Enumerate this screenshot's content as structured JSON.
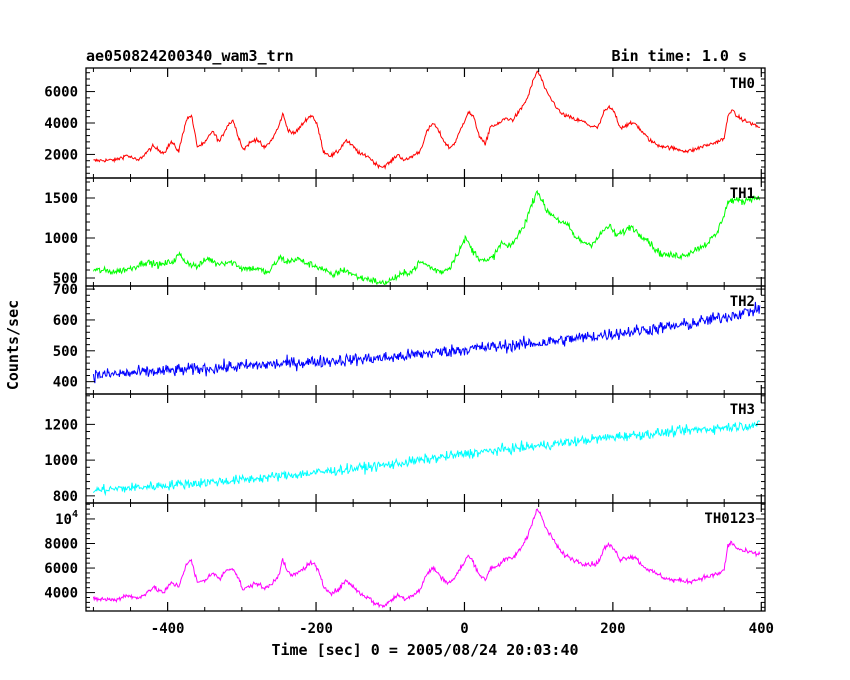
{
  "chart_data": {
    "type": "line",
    "title": "ae050824200340_wam3_trn",
    "subtitle": "Bin time: 1.0 s",
    "xlabel": "Time [sec] 0 = 2005/08/24 20:03:40",
    "ylabel": "Counts/sec",
    "xlim": [
      -510,
      405
    ],
    "x_ticks": [
      "-400",
      "-200",
      "0",
      "200",
      "400"
    ],
    "grid": false,
    "panels": [
      {
        "name": "TH0",
        "color": "#ff0000",
        "ylim": [
          500,
          7500
        ],
        "y_ticks": [
          "2000",
          "4000",
          "6000"
        ],
        "trend": [
          [
            -500,
            1600
          ],
          [
            -470,
            1650
          ],
          [
            -455,
            1950
          ],
          [
            -440,
            1600
          ],
          [
            -420,
            2500
          ],
          [
            -405,
            2100
          ],
          [
            -395,
            2800
          ],
          [
            -385,
            2200
          ],
          [
            -375,
            4200
          ],
          [
            -368,
            4500
          ],
          [
            -360,
            2500
          ],
          [
            -350,
            2700
          ],
          [
            -340,
            3500
          ],
          [
            -330,
            2800
          ],
          [
            -320,
            3800
          ],
          [
            -312,
            4200
          ],
          [
            -305,
            3200
          ],
          [
            -298,
            2300
          ],
          [
            -290,
            2700
          ],
          [
            -280,
            3000
          ],
          [
            -270,
            2400
          ],
          [
            -260,
            2900
          ],
          [
            -250,
            3800
          ],
          [
            -245,
            4600
          ],
          [
            -238,
            3600
          ],
          [
            -230,
            3300
          ],
          [
            -222,
            3700
          ],
          [
            -212,
            4300
          ],
          [
            -205,
            4500
          ],
          [
            -198,
            3800
          ],
          [
            -190,
            2200
          ],
          [
            -180,
            1900
          ],
          [
            -170,
            2200
          ],
          [
            -160,
            2900
          ],
          [
            -150,
            2500
          ],
          [
            -140,
            2000
          ],
          [
            -130,
            1900
          ],
          [
            -120,
            1400
          ],
          [
            -110,
            1200
          ],
          [
            -100,
            1500
          ],
          [
            -90,
            2000
          ],
          [
            -80,
            1600
          ],
          [
            -70,
            1900
          ],
          [
            -60,
            2200
          ],
          [
            -50,
            3500
          ],
          [
            -42,
            4000
          ],
          [
            -35,
            3500
          ],
          [
            -27,
            2800
          ],
          [
            -20,
            2400
          ],
          [
            -12,
            2800
          ],
          [
            -5,
            3600
          ],
          [
            5,
            4700
          ],
          [
            12,
            4400
          ],
          [
            20,
            3200
          ],
          [
            28,
            2600
          ],
          [
            35,
            3800
          ],
          [
            45,
            3900
          ],
          [
            55,
            4300
          ],
          [
            65,
            4200
          ],
          [
            75,
            4800
          ],
          [
            85,
            5600
          ],
          [
            92,
            6600
          ],
          [
            98,
            7300
          ],
          [
            103,
            6900
          ],
          [
            110,
            6000
          ],
          [
            120,
            5300
          ],
          [
            130,
            4600
          ],
          [
            140,
            4400
          ],
          [
            150,
            4200
          ],
          [
            160,
            4100
          ],
          [
            170,
            3800
          ],
          [
            180,
            3700
          ],
          [
            188,
            4700
          ],
          [
            195,
            5000
          ],
          [
            202,
            4700
          ],
          [
            210,
            3700
          ],
          [
            220,
            3900
          ],
          [
            230,
            4000
          ],
          [
            240,
            3400
          ],
          [
            250,
            2900
          ],
          [
            260,
            2600
          ],
          [
            270,
            2500
          ],
          [
            280,
            2400
          ],
          [
            290,
            2300
          ],
          [
            300,
            2200
          ],
          [
            310,
            2300
          ],
          [
            320,
            2500
          ],
          [
            335,
            2700
          ],
          [
            345,
            2900
          ],
          [
            350,
            3000
          ],
          [
            355,
            4400
          ],
          [
            360,
            4900
          ],
          [
            365,
            4500
          ],
          [
            375,
            4200
          ],
          [
            390,
            3900
          ],
          [
            398,
            3700
          ]
        ],
        "noise": 0.02
      },
      {
        "name": "TH1",
        "color": "#00ff00",
        "ylim": [
          400,
          1750
        ],
        "y_ticks": [
          "500",
          "1000",
          "1500"
        ],
        "trend": [
          [
            -500,
            600
          ],
          [
            -470,
            580
          ],
          [
            -450,
            620
          ],
          [
            -430,
            700
          ],
          [
            -410,
            660
          ],
          [
            -390,
            720
          ],
          [
            -385,
            800
          ],
          [
            -375,
            700
          ],
          [
            -360,
            640
          ],
          [
            -345,
            750
          ],
          [
            -335,
            680
          ],
          [
            -320,
            700
          ],
          [
            -310,
            690
          ],
          [
            -300,
            620
          ],
          [
            -280,
            620
          ],
          [
            -265,
            560
          ],
          [
            -255,
            680
          ],
          [
            -248,
            760
          ],
          [
            -240,
            700
          ],
          [
            -225,
            740
          ],
          [
            -212,
            680
          ],
          [
            -200,
            650
          ],
          [
            -188,
            600
          ],
          [
            -178,
            520
          ],
          [
            -170,
            580
          ],
          [
            -160,
            600
          ],
          [
            -150,
            540
          ],
          [
            -140,
            500
          ],
          [
            -130,
            490
          ],
          [
            -120,
            460
          ],
          [
            -112,
            430
          ],
          [
            -100,
            470
          ],
          [
            -90,
            520
          ],
          [
            -80,
            560
          ],
          [
            -70,
            590
          ],
          [
            -60,
            700
          ],
          [
            -50,
            660
          ],
          [
            -40,
            600
          ],
          [
            -30,
            580
          ],
          [
            -20,
            630
          ],
          [
            -10,
            800
          ],
          [
            2,
            1000
          ],
          [
            10,
            850
          ],
          [
            20,
            750
          ],
          [
            30,
            700
          ],
          [
            40,
            780
          ],
          [
            50,
            940
          ],
          [
            60,
            880
          ],
          [
            70,
            1000
          ],
          [
            80,
            1150
          ],
          [
            90,
            1400
          ],
          [
            98,
            1600
          ],
          [
            103,
            1500
          ],
          [
            110,
            1350
          ],
          [
            120,
            1280
          ],
          [
            130,
            1200
          ],
          [
            140,
            1150
          ],
          [
            150,
            1000
          ],
          [
            160,
            950
          ],
          [
            170,
            920
          ],
          [
            180,
            1000
          ],
          [
            188,
            1100
          ],
          [
            195,
            1150
          ],
          [
            205,
            1030
          ],
          [
            215,
            1080
          ],
          [
            225,
            1150
          ],
          [
            235,
            1050
          ],
          [
            245,
            1000
          ],
          [
            255,
            880
          ],
          [
            265,
            800
          ],
          [
            280,
            780
          ],
          [
            295,
            780
          ],
          [
            310,
            850
          ],
          [
            325,
            920
          ],
          [
            340,
            1050
          ],
          [
            350,
            1300
          ],
          [
            355,
            1450
          ],
          [
            365,
            1480
          ],
          [
            375,
            1450
          ],
          [
            385,
            1500
          ],
          [
            398,
            1500
          ]
        ],
        "noise": 0.035
      },
      {
        "name": "TH2",
        "color": "#0000ff",
        "ylim": [
          360,
          710
        ],
        "y_ticks": [
          "400",
          "500",
          "600",
          "700"
        ],
        "trend": [
          [
            -500,
            420
          ],
          [
            -400,
            435
          ],
          [
            -300,
            450
          ],
          [
            -200,
            465
          ],
          [
            -100,
            478
          ],
          [
            0,
            505
          ],
          [
            100,
            525
          ],
          [
            200,
            555
          ],
          [
            300,
            585
          ],
          [
            350,
            610
          ],
          [
            398,
            635
          ]
        ],
        "noise": 0.065
      },
      {
        "name": "TH3",
        "color": "#00ffff",
        "ylim": [
          760,
          1370
        ],
        "y_ticks": [
          "800",
          "1000",
          "1200"
        ],
        "trend": [
          [
            -500,
            830
          ],
          [
            -400,
            860
          ],
          [
            -300,
            890
          ],
          [
            -200,
            930
          ],
          [
            -100,
            975
          ],
          [
            0,
            1035
          ],
          [
            100,
            1080
          ],
          [
            200,
            1130
          ],
          [
            300,
            1165
          ],
          [
            398,
            1200
          ]
        ],
        "noise": 0.05
      },
      {
        "name": "TH0123",
        "color": "#ff00ff",
        "ylim": [
          2500,
          11300
        ],
        "y_ticks": [
          "4000",
          "6000",
          "8000",
          "10^4"
        ],
        "trend": [
          [
            -500,
            3500
          ],
          [
            -470,
            3400
          ],
          [
            -455,
            3800
          ],
          [
            -440,
            3500
          ],
          [
            -420,
            4400
          ],
          [
            -405,
            4000
          ],
          [
            -395,
            4800
          ],
          [
            -385,
            4500
          ],
          [
            -375,
            6300
          ],
          [
            -368,
            6600
          ],
          [
            -360,
            4800
          ],
          [
            -350,
            5000
          ],
          [
            -340,
            5600
          ],
          [
            -330,
            5100
          ],
          [
            -320,
            5900
          ],
          [
            -312,
            6000
          ],
          [
            -305,
            5200
          ],
          [
            -298,
            4200
          ],
          [
            -290,
            4500
          ],
          [
            -280,
            4800
          ],
          [
            -270,
            4300
          ],
          [
            -260,
            4700
          ],
          [
            -250,
            5500
          ],
          [
            -245,
            6700
          ],
          [
            -238,
            5600
          ],
          [
            -230,
            5400
          ],
          [
            -222,
            5700
          ],
          [
            -212,
            6200
          ],
          [
            -205,
            6500
          ],
          [
            -198,
            5900
          ],
          [
            -190,
            4500
          ],
          [
            -180,
            4000
          ],
          [
            -170,
            4200
          ],
          [
            -160,
            5000
          ],
          [
            -150,
            4500
          ],
          [
            -140,
            3900
          ],
          [
            -130,
            3600
          ],
          [
            -120,
            3100
          ],
          [
            -110,
            2900
          ],
          [
            -100,
            3300
          ],
          [
            -90,
            3800
          ],
          [
            -80,
            3500
          ],
          [
            -70,
            3800
          ],
          [
            -60,
            4200
          ],
          [
            -50,
            5600
          ],
          [
            -42,
            6000
          ],
          [
            -35,
            5500
          ],
          [
            -27,
            5000
          ],
          [
            -20,
            4800
          ],
          [
            -12,
            5300
          ],
          [
            -5,
            6000
          ],
          [
            5,
            7000
          ],
          [
            12,
            6500
          ],
          [
            20,
            5500
          ],
          [
            28,
            5000
          ],
          [
            35,
            6000
          ],
          [
            45,
            6200
          ],
          [
            55,
            6700
          ],
          [
            65,
            6800
          ],
          [
            75,
            7500
          ],
          [
            85,
            8600
          ],
          [
            92,
            9900
          ],
          [
            98,
            10800
          ],
          [
            103,
            10300
          ],
          [
            110,
            9200
          ],
          [
            120,
            8300
          ],
          [
            130,
            7300
          ],
          [
            140,
            6900
          ],
          [
            150,
            6600
          ],
          [
            160,
            6400
          ],
          [
            170,
            6300
          ],
          [
            180,
            6400
          ],
          [
            188,
            7600
          ],
          [
            195,
            7900
          ],
          [
            202,
            7500
          ],
          [
            210,
            6700
          ],
          [
            220,
            6900
          ],
          [
            230,
            6900
          ],
          [
            240,
            6200
          ],
          [
            250,
            5800
          ],
          [
            260,
            5500
          ],
          [
            270,
            5200
          ],
          [
            280,
            5000
          ],
          [
            290,
            5000
          ],
          [
            300,
            4900
          ],
          [
            310,
            5000
          ],
          [
            320,
            5200
          ],
          [
            335,
            5400
          ],
          [
            345,
            5600
          ],
          [
            350,
            5900
          ],
          [
            355,
            7800
          ],
          [
            360,
            8100
          ],
          [
            365,
            7700
          ],
          [
            375,
            7400
          ],
          [
            390,
            7200
          ],
          [
            398,
            7100
          ]
        ],
        "noise": 0.025
      }
    ]
  }
}
